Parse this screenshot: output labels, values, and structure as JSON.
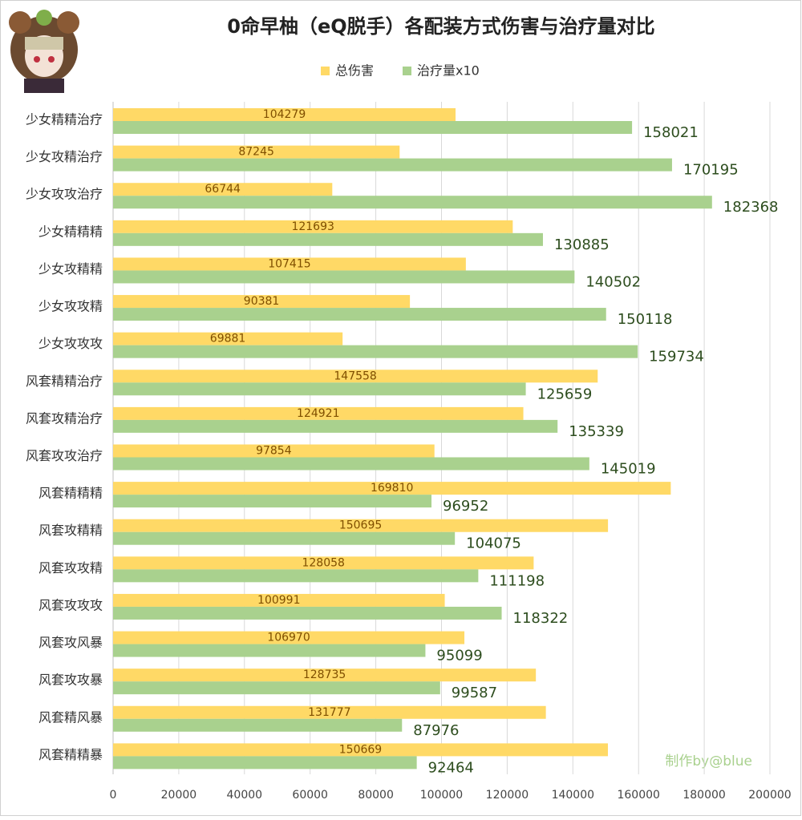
{
  "chart_data": {
    "type": "barh",
    "title": "0命早柚（eQ脱手）各配装方式伤害与治疗量对比",
    "categories": [
      "少女精精治疗",
      "少女攻精治疗",
      "少女攻攻治疗",
      "少女精精精",
      "少女攻精精",
      "少女攻攻精",
      "少女攻攻攻",
      "风套精精治疗",
      "风套攻精治疗",
      "风套攻攻治疗",
      "风套精精精",
      "风套攻精精",
      "风套攻攻精",
      "风套攻攻攻",
      "风套攻风暴",
      "风套攻攻暴",
      "风套精风暴",
      "风套精精暴"
    ],
    "series": [
      {
        "name": "总伤害",
        "color": "#FFD966",
        "values": [
          104279,
          87245,
          66744,
          121693,
          107415,
          90381,
          69881,
          147558,
          124921,
          97854,
          169810,
          150695,
          128058,
          100991,
          106970,
          128735,
          131777,
          150669
        ]
      },
      {
        "name": "治疗量x10",
        "color": "#A9D18E",
        "values": [
          158021,
          170195,
          182368,
          130885,
          140502,
          150118,
          159734,
          125659,
          135339,
          145019,
          96952,
          104075,
          111198,
          118322,
          95099,
          99587,
          87976,
          92464
        ]
      }
    ],
    "xlim": [
      0,
      200000
    ],
    "xticks": [
      0,
      20000,
      40000,
      60000,
      80000,
      100000,
      120000,
      140000,
      160000,
      180000,
      200000
    ],
    "grid": true,
    "annotation": "制作by@blue"
  }
}
